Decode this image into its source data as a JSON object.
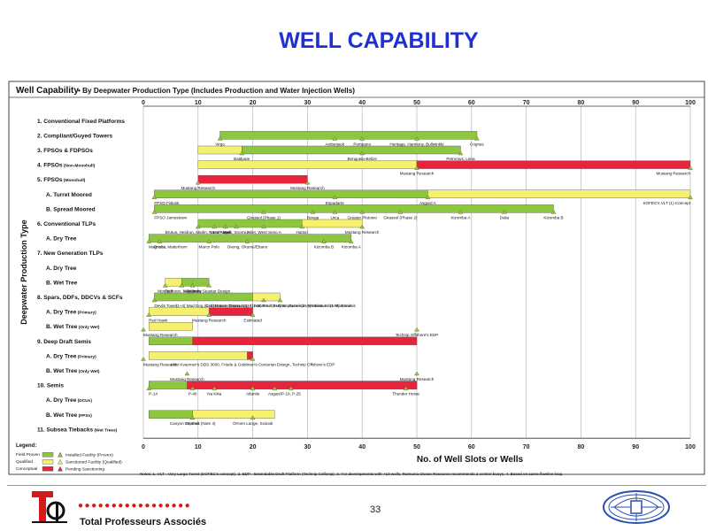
{
  "slide_title": "WELL CAPABILITY",
  "footer": {
    "brand": "Total Professeurs Associés",
    "page_number": "33",
    "dots": "●●●●●●●●●●●●●●●●●"
  },
  "colors": {
    "proven": "#8dc63f",
    "qualified": "#f5f06e",
    "conceptual": "#e8243c",
    "title": "#1f2fd6"
  },
  "chart_data": {
    "type": "bar",
    "title": "Well Capability",
    "subtitle": "• By Deepwater Production Type (Includes Production and Water Injection Wells)",
    "ylabel": "Deepwater Production Type",
    "xlabel": "No. of Well Slots or Wells",
    "xlim": [
      0,
      100
    ],
    "x_ticks": [
      0,
      10,
      20,
      30,
      40,
      50,
      60,
      70,
      80,
      90,
      100
    ],
    "categories": [
      {
        "label": "1. Conventional Fixed Platforms"
      },
      {
        "label": "2. Compliant/Guyed Towers"
      },
      {
        "label": "3. FPSOs & FDPSOs"
      },
      {
        "label": "4. FPSOs",
        "note": "(Non-Monohull)"
      },
      {
        "label": "5. FPSOs",
        "note": "(Monohull)"
      },
      {
        "label": "A. Turret Moored",
        "sub": true
      },
      {
        "label": "B. Spread Moored",
        "sub": true
      },
      {
        "label": "6. Conventional TLPs"
      },
      {
        "label": "A. Dry Tree",
        "sub": true
      },
      {
        "label": "7. New Generation TLPs"
      },
      {
        "label": "A. Dry Tree",
        "sub": true
      },
      {
        "label": "B. Wet Tree",
        "sub": true
      },
      {
        "label": "8. Spars, DDFs, DDCVs & SCFs"
      },
      {
        "label": "A. Dry Tree",
        "note": "(Primary)",
        "sub": true
      },
      {
        "label": "B. Wet Tree",
        "note": "(Only Wet)",
        "sub": true
      },
      {
        "label": "9. Deep Draft Semis"
      },
      {
        "label": "A. Dry Tree",
        "note": "(Primary)",
        "sub": true
      },
      {
        "label": "B. Wet Tree",
        "note": "(Only Wet)",
        "sub": true
      },
      {
        "label": "10. Semis"
      },
      {
        "label": "A. Dry Tree",
        "note": "(DCUs)",
        "sub": true
      },
      {
        "label": "B. Wet Tree",
        "note": "(FPSs)",
        "sub": true
      },
      {
        "label": "11. Subsea Tiebacks",
        "note": "(Wet Trees)"
      }
    ],
    "series": [
      {
        "name": "Field Proven",
        "status": "proven",
        "bars": [
          {
            "row": 1,
            "start": 14,
            "end": 61
          },
          {
            "row": 2,
            "start": 18,
            "end": 58
          },
          {
            "row": 5,
            "start": 2,
            "end": 52
          },
          {
            "row": 6,
            "start": 2,
            "end": 75
          },
          {
            "row": 7,
            "start": 10,
            "end": 29
          },
          {
            "row": 8,
            "start": 1,
            "end": 38
          },
          {
            "row": 11,
            "start": 7,
            "end": 12
          },
          {
            "row": 12,
            "start": 2,
            "end": 20
          },
          {
            "row": 15,
            "start": 1,
            "end": 9
          },
          {
            "row": 18,
            "start": 1,
            "end": 50
          },
          {
            "row": 20,
            "start": 1,
            "end": 9
          }
        ]
      },
      {
        "name": "Qualified",
        "status": "qualified",
        "bars": [
          {
            "row": 2,
            "start": 10,
            "end": 18
          },
          {
            "row": 3,
            "start": 10,
            "end": 50
          },
          {
            "row": 5,
            "start": 52,
            "end": 100
          },
          {
            "row": 7,
            "start": 29,
            "end": 40
          },
          {
            "row": 11,
            "start": 4,
            "end": 7
          },
          {
            "row": 12,
            "start": 20,
            "end": 25
          },
          {
            "row": 13,
            "start": 1,
            "end": 12
          },
          {
            "row": 14,
            "start": 1,
            "end": 9
          },
          {
            "row": 16,
            "start": 1,
            "end": 19
          },
          {
            "row": 20,
            "start": 9,
            "end": 24
          }
        ]
      },
      {
        "name": "Conceptual",
        "status": "conceptual",
        "bars": [
          {
            "row": 3,
            "start": 50,
            "end": 100
          },
          {
            "row": 4,
            "start": 10,
            "end": 30
          },
          {
            "row": 13,
            "start": 12,
            "end": 20
          },
          {
            "row": 15,
            "start": 9,
            "end": 50
          },
          {
            "row": 16,
            "start": 19,
            "end": 20
          },
          {
            "row": 18,
            "start": 8,
            "end": 50
          }
        ]
      }
    ],
    "point_labels": [
      {
        "row": 1,
        "x": 14,
        "text": "Virgo"
      },
      {
        "row": 1,
        "x": 35,
        "text": "Amberjack"
      },
      {
        "row": 1,
        "x": 40,
        "text": "Pompano"
      },
      {
        "row": 1,
        "x": 50,
        "text": "Heritage, Harmony, Bullwinkle"
      },
      {
        "row": 1,
        "x": 61,
        "text": "Cognac"
      },
      {
        "row": 2,
        "x": 18,
        "text": "Baldpate"
      },
      {
        "row": 2,
        "x": 40,
        "text": "Benguela-Belize"
      },
      {
        "row": 2,
        "x": 58,
        "text": "Petronius, Lena"
      },
      {
        "row": 3,
        "x": 50,
        "text": "Mustang Research"
      },
      {
        "row": 3,
        "x": 100,
        "text": "Mustang Research"
      },
      {
        "row": 4,
        "x": 10,
        "text": "Mustang Research"
      },
      {
        "row": 4,
        "x": 30,
        "text": "Mustang Research"
      },
      {
        "row": 5,
        "x": 2,
        "text": "FPSO Fisknik"
      },
      {
        "row": 5,
        "x": 35,
        "text": "Espadarte"
      },
      {
        "row": 5,
        "x": 52,
        "text": "Asgard A"
      },
      {
        "row": 5,
        "x": 100,
        "text": "SOFEC's VLT (1) Concept"
      },
      {
        "row": 6,
        "x": 2,
        "text": "FPSO Jamestown"
      },
      {
        "row": 6,
        "x": 22,
        "text": "Girassol (Phase 1)"
      },
      {
        "row": 6,
        "x": 31,
        "text": "Bonga"
      },
      {
        "row": 6,
        "x": 35,
        "text": "Urca"
      },
      {
        "row": 6,
        "x": 40,
        "text": "Greater Plutonio"
      },
      {
        "row": 6,
        "x": 47,
        "text": "Girassol (Phase 2)"
      },
      {
        "row": 6,
        "x": 58,
        "text": "Kizomba A"
      },
      {
        "row": 6,
        "x": 66,
        "text": "Dalia"
      },
      {
        "row": 6,
        "x": 75,
        "text": "Kizomba B"
      },
      {
        "row": 7,
        "x": 10,
        "text": "Brutus, Heidrun, Marlin, Ram/Powell"
      },
      {
        "row": 7,
        "x": 13,
        "text": "Ursa"
      },
      {
        "row": 7,
        "x": 15,
        "text": "Auger"
      },
      {
        "row": 7,
        "x": 17,
        "text": "Mars, Snorre A"
      },
      {
        "row": 7,
        "x": 22,
        "text": "Joliet, West Seno A"
      },
      {
        "row": 7,
        "x": 29,
        "text": "Hutton"
      },
      {
        "row": 7,
        "x": 40,
        "text": "Mustang Research"
      },
      {
        "row": 8,
        "x": 3,
        "text": "Prince"
      },
      {
        "row": 8,
        "x": 1,
        "text": "Magnolia, Matterhorn"
      },
      {
        "row": 8,
        "x": 12,
        "text": "Marco Polo"
      },
      {
        "row": 8,
        "x": 19,
        "text": "Oveng, Okume/Ebano"
      },
      {
        "row": 8,
        "x": 33,
        "text": "Kizomba B"
      },
      {
        "row": 8,
        "x": 38,
        "text": "Kizomba A"
      },
      {
        "row": 11,
        "x": 4,
        "text": "Morpeth"
      },
      {
        "row": 11,
        "x": 9,
        "text": "Allegheny"
      },
      {
        "row": 11,
        "x": 7,
        "text": "Typhoon, Neptune"
      },
      {
        "row": 11,
        "x": 12,
        "text": "Atlantia Seastar Design"
      },
      {
        "row": 12,
        "x": 2,
        "text": "Devils Tower"
      },
      {
        "row": 12,
        "x": 25,
        "text": "(1+2) Hoover/Diana / (1+4) Nansen / (1+8) Neptune / (1+9) Holstein / (1+6) Genesis"
      },
      {
        "row": 12,
        "x": 22,
        "text": "(1+4) Mad Dog, Constitution, Boomvang / (1+8) Front Runner, Gunnison, Medusa, Horn Mountain"
      },
      {
        "row": 13,
        "x": 1,
        "text": "Red Hawk"
      },
      {
        "row": 13,
        "x": 12,
        "text": "Mustang Research"
      },
      {
        "row": 13,
        "x": 20,
        "text": "Estimated"
      },
      {
        "row": 14,
        "x": 0,
        "text": "Mustang Research"
      },
      {
        "row": 14,
        "x": 50,
        "text": "Technip Offshore's EDP"
      },
      {
        "row": 16,
        "x": 0,
        "text": "Mustang Research"
      },
      {
        "row": 16,
        "x": 20,
        "text": "Aker Kvaerner's DDS 3000, Friede & Goldman's Centurian Design, Technip Offshore's EDP"
      },
      {
        "row": 17,
        "x": 8,
        "text": "Mustang Research"
      },
      {
        "row": 17,
        "x": 50,
        "text": "Mustang Research"
      },
      {
        "row": 18,
        "x": 1,
        "text": "P-14"
      },
      {
        "row": 18,
        "x": 9,
        "text": "P-40"
      },
      {
        "row": 18,
        "x": 13,
        "text": "Na Kika"
      },
      {
        "row": 18,
        "x": 20,
        "text": "Atlantis"
      },
      {
        "row": 18,
        "x": 24,
        "text": "Asgard"
      },
      {
        "row": 18,
        "x": 27,
        "text": "P-19, P-25"
      },
      {
        "row": 18,
        "x": 48,
        "text": "Thunder Horse"
      },
      {
        "row": 20,
        "x": 9,
        "text": "Canyon Express (Note 4)"
      },
      {
        "row": 20,
        "x": 9,
        "text": "Snohvit"
      },
      {
        "row": 20,
        "x": 20,
        "text": "Ormen Lange, Scarab"
      }
    ],
    "legend_title": "Legend:",
    "legend": [
      {
        "status": "proven",
        "label": "Field Proven",
        "marker": "Installed Facility (Proven)"
      },
      {
        "status": "qualified",
        "label": "Qualified",
        "marker": "Sanctioned Facility (Qualified)"
      },
      {
        "status": "conceptual",
        "label": "Conceptual",
        "marker": "Pending Sanctioning"
      }
    ],
    "notes": "Notes: 1. VLT - Very Large Turret (SOFEC's concept). 2. EDP - Extendable Draft Platform (Technip Coflexip). 3. For developments with >10 wells, Ramunia Ocean Resource recommends 2 control buoys. 4. Based on same flowline loop."
  }
}
